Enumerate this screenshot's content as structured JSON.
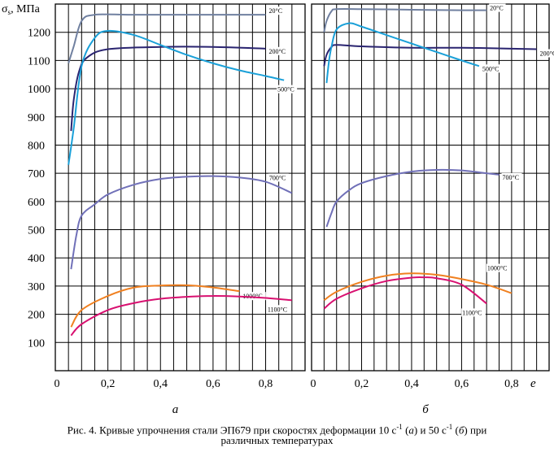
{
  "chart_data": [
    {
      "type": "line",
      "panel_label": "а",
      "ylabel": "σs, МПа",
      "xlim": [
        0,
        0.95
      ],
      "ylim": [
        0,
        1300
      ],
      "x_ticks": [
        "0",
        "0,2",
        "0,4",
        "0,6",
        "0,8"
      ],
      "y_ticks": [
        "100",
        "200",
        "300",
        "400",
        "500",
        "600",
        "700",
        "800",
        "900",
        "1000",
        "1100",
        "1200"
      ],
      "grid": true,
      "series": [
        {
          "name": "20°C",
          "color": "#7080a0",
          "x": [
            0.05,
            0.07,
            0.1,
            0.15,
            0.3,
            0.5,
            0.7,
            0.8
          ],
          "y": [
            1090,
            1150,
            1240,
            1262,
            1262,
            1262,
            1262,
            1262
          ]
        },
        {
          "name": "200°C",
          "color": "#2a2470",
          "x": [
            0.06,
            0.07,
            0.09,
            0.12,
            0.2,
            0.4,
            0.6,
            0.8
          ],
          "y": [
            850,
            960,
            1060,
            1110,
            1140,
            1148,
            1148,
            1142
          ]
        },
        {
          "name": "500°C",
          "color": "#1aa0d8",
          "x": [
            0.05,
            0.07,
            0.1,
            0.15,
            0.2,
            0.3,
            0.4,
            0.5,
            0.6,
            0.7,
            0.8,
            0.87
          ],
          "y": [
            730,
            860,
            1080,
            1180,
            1205,
            1190,
            1155,
            1120,
            1090,
            1065,
            1045,
            1030
          ]
        },
        {
          "name": "700°C",
          "color": "#7070b8",
          "x": [
            0.06,
            0.08,
            0.1,
            0.15,
            0.2,
            0.3,
            0.4,
            0.5,
            0.6,
            0.7,
            0.8,
            0.9
          ],
          "y": [
            360,
            480,
            550,
            590,
            625,
            660,
            680,
            688,
            690,
            685,
            670,
            630
          ]
        },
        {
          "name": "1000°C",
          "color": "#f08020",
          "x": [
            0.06,
            0.1,
            0.2,
            0.3,
            0.4,
            0.5,
            0.6,
            0.7
          ],
          "y": [
            155,
            215,
            265,
            295,
            302,
            303,
            295,
            282
          ]
        },
        {
          "name": "1100°C",
          "color": "#d81070",
          "x": [
            0.06,
            0.1,
            0.2,
            0.3,
            0.4,
            0.5,
            0.6,
            0.7,
            0.8,
            0.9
          ],
          "y": [
            125,
            165,
            215,
            240,
            255,
            262,
            265,
            263,
            258,
            250
          ]
        }
      ]
    },
    {
      "type": "line",
      "panel_label": "б",
      "xlabel": "e",
      "xlim": [
        0,
        0.95
      ],
      "ylim": [
        0,
        1300
      ],
      "x_ticks": [
        "0",
        "0,2",
        "0,4",
        "0,6",
        "0,8"
      ],
      "grid": true,
      "series": [
        {
          "name": "20°C",
          "color": "#7080a0",
          "x": [
            0.05,
            0.06,
            0.08,
            0.1,
            0.2,
            0.4,
            0.6,
            0.7
          ],
          "y": [
            1200,
            1240,
            1275,
            1282,
            1282,
            1280,
            1278,
            1278
          ]
        },
        {
          "name": "200°C",
          "color": "#2a2470",
          "x": [
            0.05,
            0.06,
            0.08,
            0.1,
            0.2,
            0.4,
            0.6,
            0.8,
            0.9
          ],
          "y": [
            1080,
            1120,
            1148,
            1155,
            1150,
            1145,
            1145,
            1142,
            1140
          ]
        },
        {
          "name": "500°C",
          "color": "#1aa0d8",
          "x": [
            0.06,
            0.07,
            0.08,
            0.1,
            0.15,
            0.2,
            0.3,
            0.4,
            0.5,
            0.6,
            0.67
          ],
          "y": [
            1020,
            1100,
            1150,
            1210,
            1232,
            1220,
            1190,
            1160,
            1130,
            1100,
            1080
          ]
        },
        {
          "name": "700°C",
          "color": "#7070b8",
          "x": [
            0.06,
            0.08,
            0.1,
            0.15,
            0.2,
            0.3,
            0.4,
            0.5,
            0.6,
            0.7,
            0.75
          ],
          "y": [
            510,
            560,
            600,
            640,
            665,
            690,
            706,
            712,
            710,
            700,
            695
          ]
        },
        {
          "name": "1000°C",
          "color": "#f08020",
          "x": [
            0.05,
            0.1,
            0.2,
            0.3,
            0.4,
            0.5,
            0.6,
            0.7,
            0.8
          ],
          "y": [
            250,
            280,
            315,
            337,
            345,
            340,
            325,
            305,
            275
          ]
        },
        {
          "name": "1100°C",
          "color": "#d81070",
          "x": [
            0.05,
            0.1,
            0.2,
            0.3,
            0.4,
            0.45,
            0.5,
            0.6,
            0.7
          ],
          "y": [
            220,
            255,
            292,
            318,
            330,
            331,
            328,
            305,
            238
          ]
        }
      ]
    }
  ],
  "caption": {
    "prefix": "Рис. 4. Кривые упрочнения стали ЭП679 при скоростях деформации 10 с",
    "sup1": "-1",
    "mid1": " (",
    "a_letter": "а",
    "mid2": ") и 50 с",
    "sup2": "-1",
    "mid3": " (",
    "b_letter": "б",
    "suffix": ") при",
    "line2": "различных  температурах"
  }
}
